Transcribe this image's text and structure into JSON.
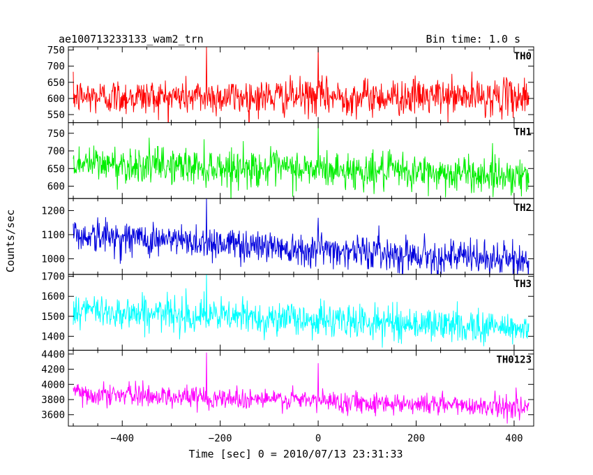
{
  "header": {
    "title": "ae100713233133_wam2_trn",
    "bin_time": "Bin time: 1.0 s"
  },
  "chart_data": {
    "type": "line",
    "title": "ae100713233133_wam2_trn",
    "subtitle": "Bin time: 1.0 s",
    "xlabel": "Time [sec] 0 = 2010/07/13 23:31:33",
    "ylabel": "Counts/sec",
    "xlim": [
      -510,
      440
    ],
    "data_x_range": [
      -500,
      430
    ],
    "bin_time_s": 1.0,
    "x_ticks": [
      -400,
      -200,
      0,
      200,
      400
    ],
    "grid": false,
    "legend": "none",
    "panels": [
      {
        "name": "TH0",
        "color": "#ff0000",
        "ylim": [
          525,
          760
        ],
        "y_ticks": [
          550,
          600,
          650,
          700,
          750
        ],
        "mean_start": 605,
        "mean_end": 605,
        "noise_sd": 28,
        "spikes": [
          {
            "x": -228,
            "y": 760
          },
          {
            "x": 0,
            "y": 760
          }
        ]
      },
      {
        "name": "TH1",
        "color": "#00ee00",
        "ylim": [
          565,
          780
        ],
        "y_ticks": [
          600,
          650,
          700,
          750
        ],
        "mean_start": 665,
        "mean_end": 630,
        "noise_sd": 26,
        "spikes": [
          {
            "x": 0,
            "y": 778
          }
        ]
      },
      {
        "name": "TH2",
        "color": "#0000dd",
        "ylim": [
          935,
          1250
        ],
        "y_ticks": [
          1000,
          1100,
          1200
        ],
        "mean_start": 1100,
        "mean_end": 990,
        "noise_sd": 35,
        "spikes": [
          {
            "x": -228,
            "y": 1250
          },
          {
            "x": 0,
            "y": 1170
          }
        ]
      },
      {
        "name": "TH3",
        "color": "#00ffff",
        "ylim": [
          1330,
          1710
        ],
        "y_ticks": [
          1400,
          1500,
          1600,
          1700
        ],
        "mean_start": 1530,
        "mean_end": 1440,
        "noise_sd": 42,
        "spikes": [
          {
            "x": -228,
            "y": 1710
          },
          {
            "x": -270,
            "y": 1640
          }
        ]
      },
      {
        "name": "TH0123",
        "color": "#ff00ff",
        "ylim": [
          3450,
          4450
        ],
        "y_ticks": [
          3600,
          3800,
          4000,
          4200,
          4400
        ],
        "mean_start": 3880,
        "mean_end": 3700,
        "noise_sd": 70,
        "spikes": [
          {
            "x": -228,
            "y": 4420
          },
          {
            "x": 0,
            "y": 4280
          }
        ]
      }
    ]
  }
}
